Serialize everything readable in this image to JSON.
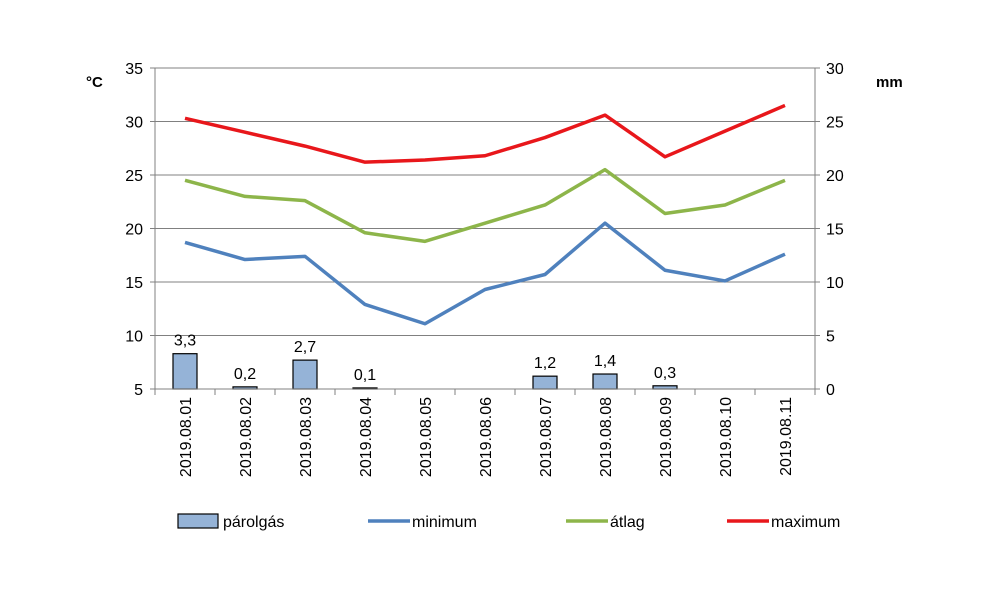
{
  "chart_data": {
    "type": "bar+line",
    "categories": [
      "2019.08.01",
      "2019.08.02",
      "2019.08.03",
      "2019.08.04",
      "2019.08.05",
      "2019.08.06",
      "2019.08.07",
      "2019.08.08",
      "2019.08.09",
      "2019.08.10",
      "2019.08.11"
    ],
    "left_axis": {
      "unit": "°C",
      "ylim": [
        5,
        35
      ],
      "ticks": [
        5,
        10,
        15,
        20,
        25,
        30,
        35
      ]
    },
    "right_axis": {
      "unit": "mm",
      "ylim": [
        0,
        30
      ],
      "ticks": [
        0,
        5,
        10,
        15,
        20,
        25,
        30
      ]
    },
    "bar_series": {
      "name": "párolgás",
      "axis": "right",
      "color": "#95B3D7",
      "values": [
        3.3,
        0.2,
        2.7,
        0.1,
        null,
        null,
        1.2,
        1.4,
        0.3,
        null,
        null
      ],
      "labels": [
        "3,3",
        "0,2",
        "2,7",
        "0,1",
        "",
        "",
        "1,2",
        "1,4",
        "0,3",
        "",
        ""
      ]
    },
    "series": [
      {
        "name": "minimum",
        "axis": "left",
        "color": "#4F81BD",
        "values": [
          18.7,
          17.1,
          17.4,
          12.9,
          11.1,
          14.3,
          15.7,
          20.5,
          16.1,
          15.1,
          17.6
        ]
      },
      {
        "name": "átlag",
        "axis": "left",
        "color": "#8DB54A",
        "values": [
          24.5,
          23.0,
          22.6,
          19.6,
          18.8,
          20.5,
          22.2,
          25.5,
          21.4,
          22.2,
          24.5
        ]
      },
      {
        "name": "maximum",
        "axis": "left",
        "color": "#E8171B",
        "values": [
          30.3,
          29.0,
          27.7,
          26.2,
          26.4,
          26.8,
          28.5,
          30.6,
          26.7,
          29.1,
          31.5
        ]
      }
    ],
    "grid": true,
    "legend": "bottom"
  }
}
